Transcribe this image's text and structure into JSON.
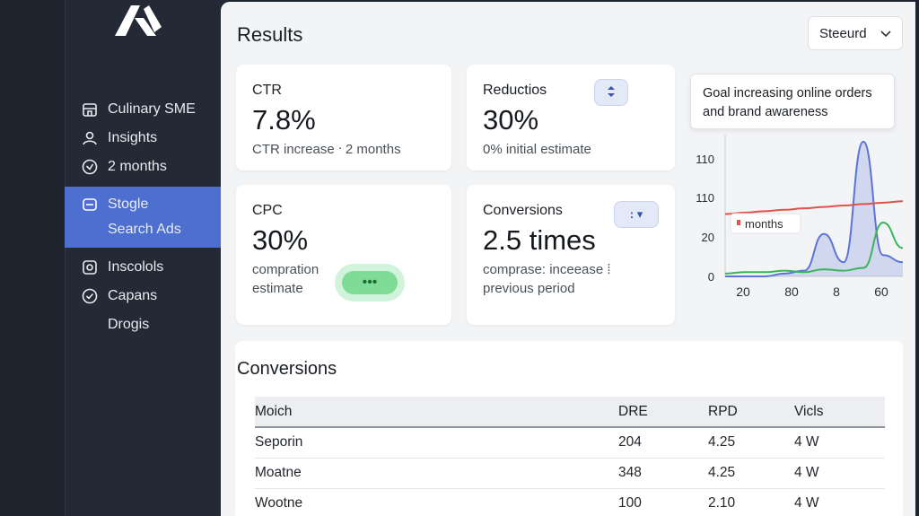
{
  "sidebar": {
    "items": [
      {
        "label": "Culinary SME",
        "icon": "building-icon"
      },
      {
        "label": "Insights",
        "icon": "users-icon"
      },
      {
        "label": "2 months",
        "icon": "check-circle-icon"
      },
      {
        "label_line1": "Stogle",
        "label_line2": "Search Ads",
        "icon": "square-icon",
        "active": true
      },
      {
        "label": "Inscolols",
        "icon": "camera-icon"
      },
      {
        "label": "Capans",
        "icon": "check-circle-icon"
      },
      {
        "label": "Drogis",
        "icon": ""
      }
    ]
  },
  "header": {
    "title": "Results",
    "select_value": "Steeurd"
  },
  "cards": {
    "ctr": {
      "label": "CTR",
      "value": "7.8%",
      "sub": "CTR increase  ᐧ 2 months"
    },
    "reduction": {
      "label": "Reductios",
      "value": "30%",
      "sub": "0% initial estimate"
    },
    "cpc": {
      "label": "CPC",
      "value": "30%",
      "sub_line1": "compration",
      "sub_line2": "estimate",
      "button": "•••"
    },
    "conversions": {
      "label": "Conversions",
      "value": "2.5 times",
      "sub_line1": "comprase: inceease ⁞",
      "sub_line2": "previous period",
      "button": ": ▾"
    }
  },
  "tooltip": {
    "text_line1": "Goal increasing online orders",
    "text_line2": "and brand awareness"
  },
  "chart_data": {
    "type": "line",
    "x_tick_labels": [
      "20",
      "80",
      "8",
      "60"
    ],
    "y_tick_labels": [
      "110",
      "110",
      "20",
      "0"
    ],
    "annotation": "months",
    "series": [
      {
        "color": "#5b74d6",
        "values": [
          0,
          0,
          0,
          2,
          4,
          30,
          10,
          95,
          15,
          10
        ]
      },
      {
        "color": "#3cb55a",
        "values": [
          2,
          3,
          3,
          4,
          3,
          5,
          4,
          6,
          38,
          20
        ]
      },
      {
        "color": "#e0534b",
        "values": [
          44,
          45,
          46,
          47,
          48,
          49,
          50,
          51,
          52,
          53
        ]
      }
    ],
    "colors": {
      "blue": "#5b74d6",
      "green": "#3cb55a",
      "red": "#e0534b"
    }
  },
  "table": {
    "title": "Conversions",
    "headers": [
      "Moich",
      "DRE",
      "RPD",
      "Vicls"
    ],
    "rows": [
      [
        "Seporin",
        "204",
        "4.25",
        "4 W"
      ],
      [
        "Moatne",
        "348",
        "4.25",
        "4 W"
      ],
      [
        "Wootne",
        "100",
        "2.10",
        "4 W"
      ]
    ]
  }
}
